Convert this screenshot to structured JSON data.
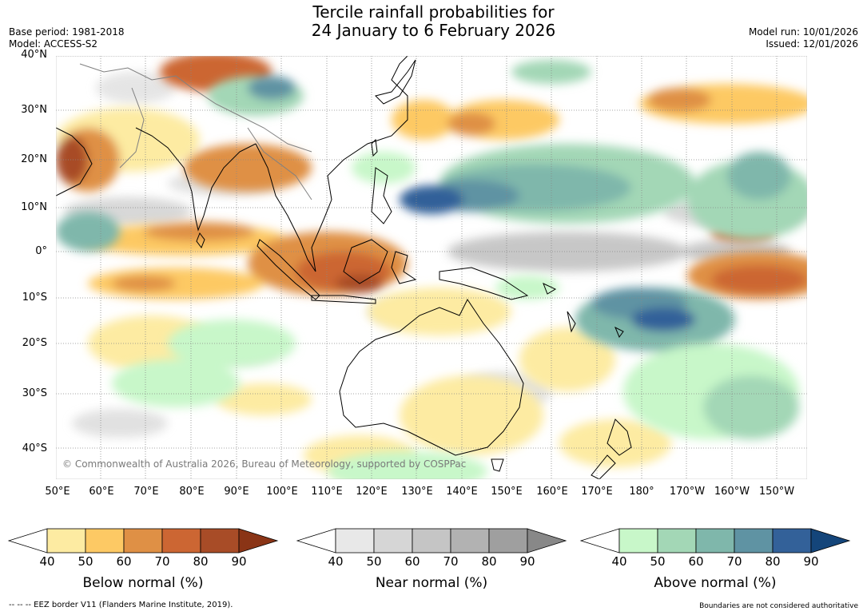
{
  "header": {
    "title_line1": "Tercile rainfall probabilities for",
    "title_line2": "24 January to 6 February 2026",
    "base_period": "Base period: 1981-2018",
    "model": "Model: ACCESS-S2",
    "model_run": "Model run: 10/01/2026",
    "issued": "Issued: 12/01/2026"
  },
  "map": {
    "lat_labels": [
      "40°N",
      "30°N",
      "20°N",
      "10°N",
      "0°",
      "10°S",
      "20°S",
      "30°S",
      "40°S"
    ],
    "lon_labels": [
      "50°E",
      "60°E",
      "70°E",
      "80°E",
      "90°E",
      "100°E",
      "110°E",
      "120°E",
      "130°E",
      "140°E",
      "150°E",
      "160°E",
      "170°E",
      "180°",
      "170°W",
      "160°W",
      "150°W"
    ],
    "copyright": "© Commonwealth of Australia 2026, Bureau of Meteorology, supported by COSPPac",
    "colors": {
      "coast": "#000000",
      "border": "#808080",
      "grid": "#888888"
    }
  },
  "legend": {
    "scales": [
      {
        "title": "Below normal (%)",
        "ticks": [
          "40",
          "50",
          "60",
          "70",
          "80",
          "90"
        ],
        "colors": [
          "#fdeba2",
          "#fdc964",
          "#df9045",
          "#cc6633",
          "#a84c27",
          "#8a3416"
        ]
      },
      {
        "title": "Near normal (%)",
        "ticks": [
          "40",
          "50",
          "60",
          "70",
          "80",
          "90"
        ],
        "colors": [
          "#e8e8e8",
          "#d6d6d6",
          "#c5c5c5",
          "#b2b2b2",
          "#9f9f9f",
          "#888888"
        ]
      },
      {
        "title": "Above normal (%)",
        "ticks": [
          "40",
          "50",
          "60",
          "70",
          "80",
          "90"
        ],
        "colors": [
          "#c8f7c9",
          "#a3d7b6",
          "#7fb7ab",
          "#5f93a3",
          "#336199",
          "#14457a"
        ]
      }
    ]
  },
  "footer": {
    "eez_note": "--  --  -- EEZ border V11 (Flanders Marine Institute, 2019).",
    "boundary_note": "Boundaries are not considered authoritative"
  }
}
